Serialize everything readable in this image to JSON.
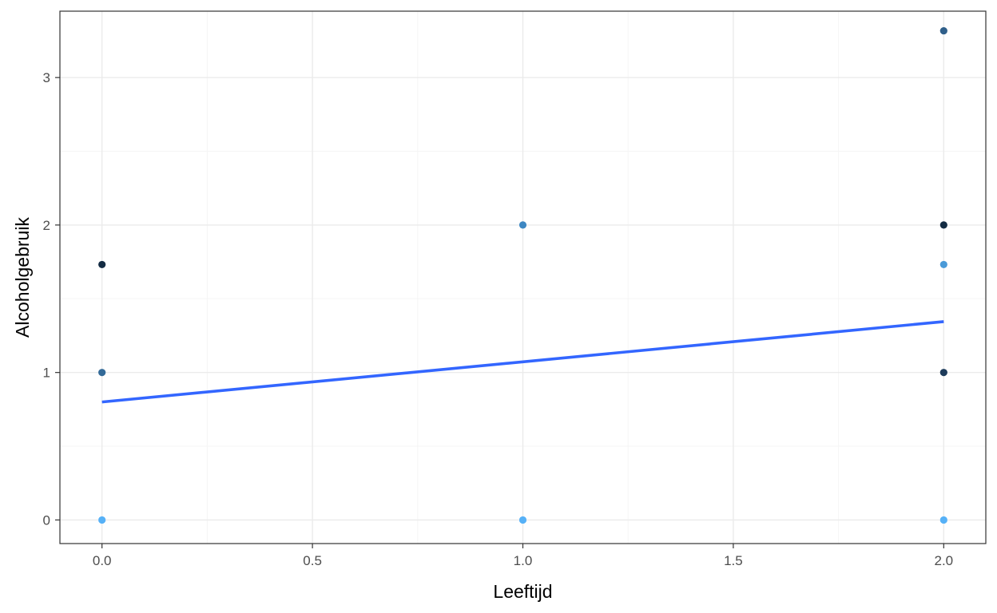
{
  "chart_data": {
    "type": "scatter",
    "title": "",
    "xlabel": "Leeftijd",
    "ylabel": "Alcoholgebruik",
    "xlim": [
      -0.1,
      2.1
    ],
    "ylim": [
      -0.16,
      3.45
    ],
    "x_ticks": [
      0.0,
      0.5,
      1.0,
      1.5,
      2.0
    ],
    "x_tick_labels": [
      "0.0",
      "0.5",
      "1.0",
      "1.5",
      "2.0"
    ],
    "y_ticks": [
      0,
      1,
      2,
      3
    ],
    "y_tick_labels": [
      "0",
      "1",
      "2",
      "3"
    ],
    "grid": true,
    "legend": "none",
    "points": [
      {
        "x": 0,
        "y": 0,
        "color": "#56b1f7"
      },
      {
        "x": 0,
        "y": 1,
        "color": "#336a98"
      },
      {
        "x": 0,
        "y": 1.732,
        "color": "#132b43"
      },
      {
        "x": 1,
        "y": 0,
        "color": "#56b1f7"
      },
      {
        "x": 1,
        "y": 2,
        "color": "#3d87c2"
      },
      {
        "x": 2,
        "y": 0,
        "color": "#56b1f7"
      },
      {
        "x": 2,
        "y": 1,
        "color": "#1d3b5a"
      },
      {
        "x": 2,
        "y": 1.732,
        "color": "#4a9ad8"
      },
      {
        "x": 2,
        "y": 2,
        "color": "#132b43"
      },
      {
        "x": 2,
        "y": 3.317,
        "color": "#2f5f8a"
      }
    ],
    "trend_line": {
      "x": [
        0,
        2
      ],
      "y": [
        0.8,
        1.345
      ],
      "color": "#3366ff"
    },
    "colors": {
      "panel_border": "#333333",
      "grid_major": "#ebebeb",
      "grid_minor": "#f5f5f5"
    }
  }
}
